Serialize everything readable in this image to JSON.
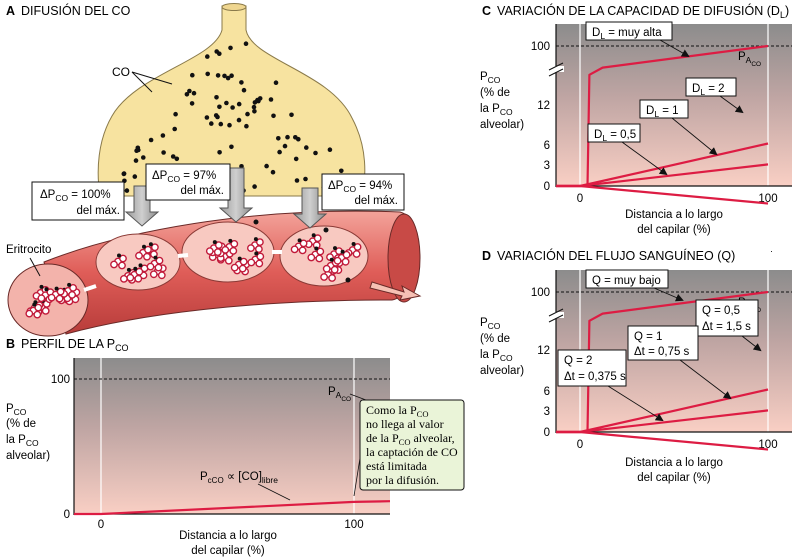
{
  "panel_a": {
    "letter": "A",
    "title": "DIFUSIÓN DEL CO",
    "co_label": "CO",
    "erythrocyte_label": "Eritrocito",
    "delta_boxes": [
      {
        "prefix": "ΔP",
        "sub": "CO",
        "value": " = 100%",
        "line2": "del máx."
      },
      {
        "prefix": "ΔP",
        "sub": "CO",
        "value": " = 97%",
        "line2": "del máx."
      },
      {
        "prefix": "ΔP",
        "sub": "CO",
        "value": " = 94%",
        "line2": "del máx."
      }
    ]
  },
  "panel_b": {
    "letter": "B",
    "title": "PERFIL DE LA P",
    "title_sub": "CO",
    "y_label": {
      "l1": "P",
      "l1_sub": "CO",
      "l2": "(% de",
      "l3": "la P",
      "l3_sub": "CO",
      "l4": "alveolar)"
    },
    "x_label": {
      "l1": "Distancia a lo largo",
      "l2": "del capilar (%)"
    },
    "palv": {
      "main": "P",
      "sub": "A",
      "subsub": "CO"
    },
    "curve_label": {
      "main": "P",
      "sub": "cCO",
      "mid": " ∝ [CO]",
      "sub2": "libre"
    },
    "note": {
      "l1": "Como la P",
      "l1_sub": "CO",
      "l2": "no llega al valor",
      "l3": "de la P",
      "l3_sub": "CO",
      "l3_end": " alveolar,",
      "l4": "la captación de CO",
      "l5": "está limitada",
      "l6": "por la difusión."
    }
  },
  "panel_c": {
    "letter": "C",
    "title": "VARIACIÓN DE LA CAPACIDAD DE DIFUSIÓN (D",
    "title_sub": "L",
    "title_end": ")",
    "y_label": {
      "l1": "P",
      "l1_sub": "CO",
      "l2": "(% de",
      "l3": "la P",
      "l3_sub": "CO",
      "l4": "alveolar)"
    },
    "x_label": {
      "l1": "Distancia a lo largo",
      "l2": "del capilar (%)"
    },
    "palv": {
      "main": "P",
      "sub": "A",
      "subsub": "CO"
    },
    "callouts": [
      {
        "main": "D",
        "sub": "L",
        "val": " = muy alta"
      },
      {
        "main": "D",
        "sub": "L",
        "val": " = 2"
      },
      {
        "main": "D",
        "sub": "L",
        "val": " = 1"
      },
      {
        "main": "D",
        "sub": "L",
        "val": " = 0,5"
      }
    ]
  },
  "panel_d": {
    "letter": "D",
    "title": "VARIACIÓN DEL FLUJO SANGUÍNEO  (Q)",
    "y_label": {
      "l1": "P",
      "l1_sub": "CO",
      "l2": "(% de",
      "l3": "la P",
      "l3_sub": "CO",
      "l4": "alveolar)"
    },
    "x_label": {
      "l1": "Distancia a lo largo",
      "l2": "del capilar (%)"
    },
    "palv": {
      "main": "P",
      "sub": "A",
      "subsub": "CO"
    },
    "callouts": [
      {
        "l1": "Q = muy bajo",
        "l2": ""
      },
      {
        "l1": "Q = 0,5",
        "l2": "Δt = 1,5 s"
      },
      {
        "l1": "Q = 1",
        "l2": "Δt = 0,75 s"
      },
      {
        "l1": "Q = 2",
        "l2": "Δt = 0,375 s"
      }
    ]
  },
  "chart_data": [
    {
      "type": "line",
      "panel": "B",
      "x_ticks": [
        "0",
        "100"
      ],
      "y_ticks": [
        "0",
        "100"
      ],
      "ylim": [
        0,
        100
      ],
      "xlim": [
        0,
        100
      ],
      "series": [
        {
          "x": [
            0,
            100
          ],
          "y": [
            0,
            9
          ]
        }
      ]
    },
    {
      "type": "line",
      "panel": "C",
      "y_axis_break": true,
      "x_ticks": [
        "0",
        "100"
      ],
      "y_ticks": [
        "0",
        "3",
        "6",
        "12",
        "100"
      ],
      "series": [
        {
          "name": "DL = muy alta",
          "x": [
            0,
            4,
            5,
            12,
            100
          ],
          "y": [
            0,
            0,
            84,
            88,
            100
          ]
        },
        {
          "name": "DL = 2",
          "x": [
            0,
            100
          ],
          "y": [
            0,
            12.5
          ]
        },
        {
          "name": "DL = 1",
          "x": [
            0,
            100
          ],
          "y": [
            0,
            6.3
          ]
        },
        {
          "name": "DL = 0,5",
          "x": [
            0,
            100
          ],
          "y": [
            0,
            3.2
          ]
        }
      ]
    },
    {
      "type": "line",
      "panel": "D",
      "y_axis_break": true,
      "x_ticks": [
        "0",
        "100"
      ],
      "y_ticks": [
        "0",
        "3",
        "6",
        "12",
        "100"
      ],
      "series": [
        {
          "name": "Q = muy bajo",
          "x": [
            0,
            4,
            5,
            12,
            100
          ],
          "y": [
            0,
            0,
            84,
            88,
            100
          ]
        },
        {
          "name": "Q = 0,5",
          "x": [
            0,
            100
          ],
          "y": [
            0,
            12.5
          ]
        },
        {
          "name": "Q = 1",
          "x": [
            0,
            100
          ],
          "y": [
            0,
            6.3
          ]
        },
        {
          "name": "Q = 2",
          "x": [
            0,
            100
          ],
          "y": [
            0,
            3.2
          ]
        }
      ]
    }
  ],
  "colors": {
    "alveolus": "#f7e3a0",
    "vessel": "#dd5a55",
    "curve": "#dd1c43",
    "plot_top": "#8a8a8a",
    "plot_bottom": "#f7c9bf",
    "note_bg": "#eaf4d8"
  }
}
